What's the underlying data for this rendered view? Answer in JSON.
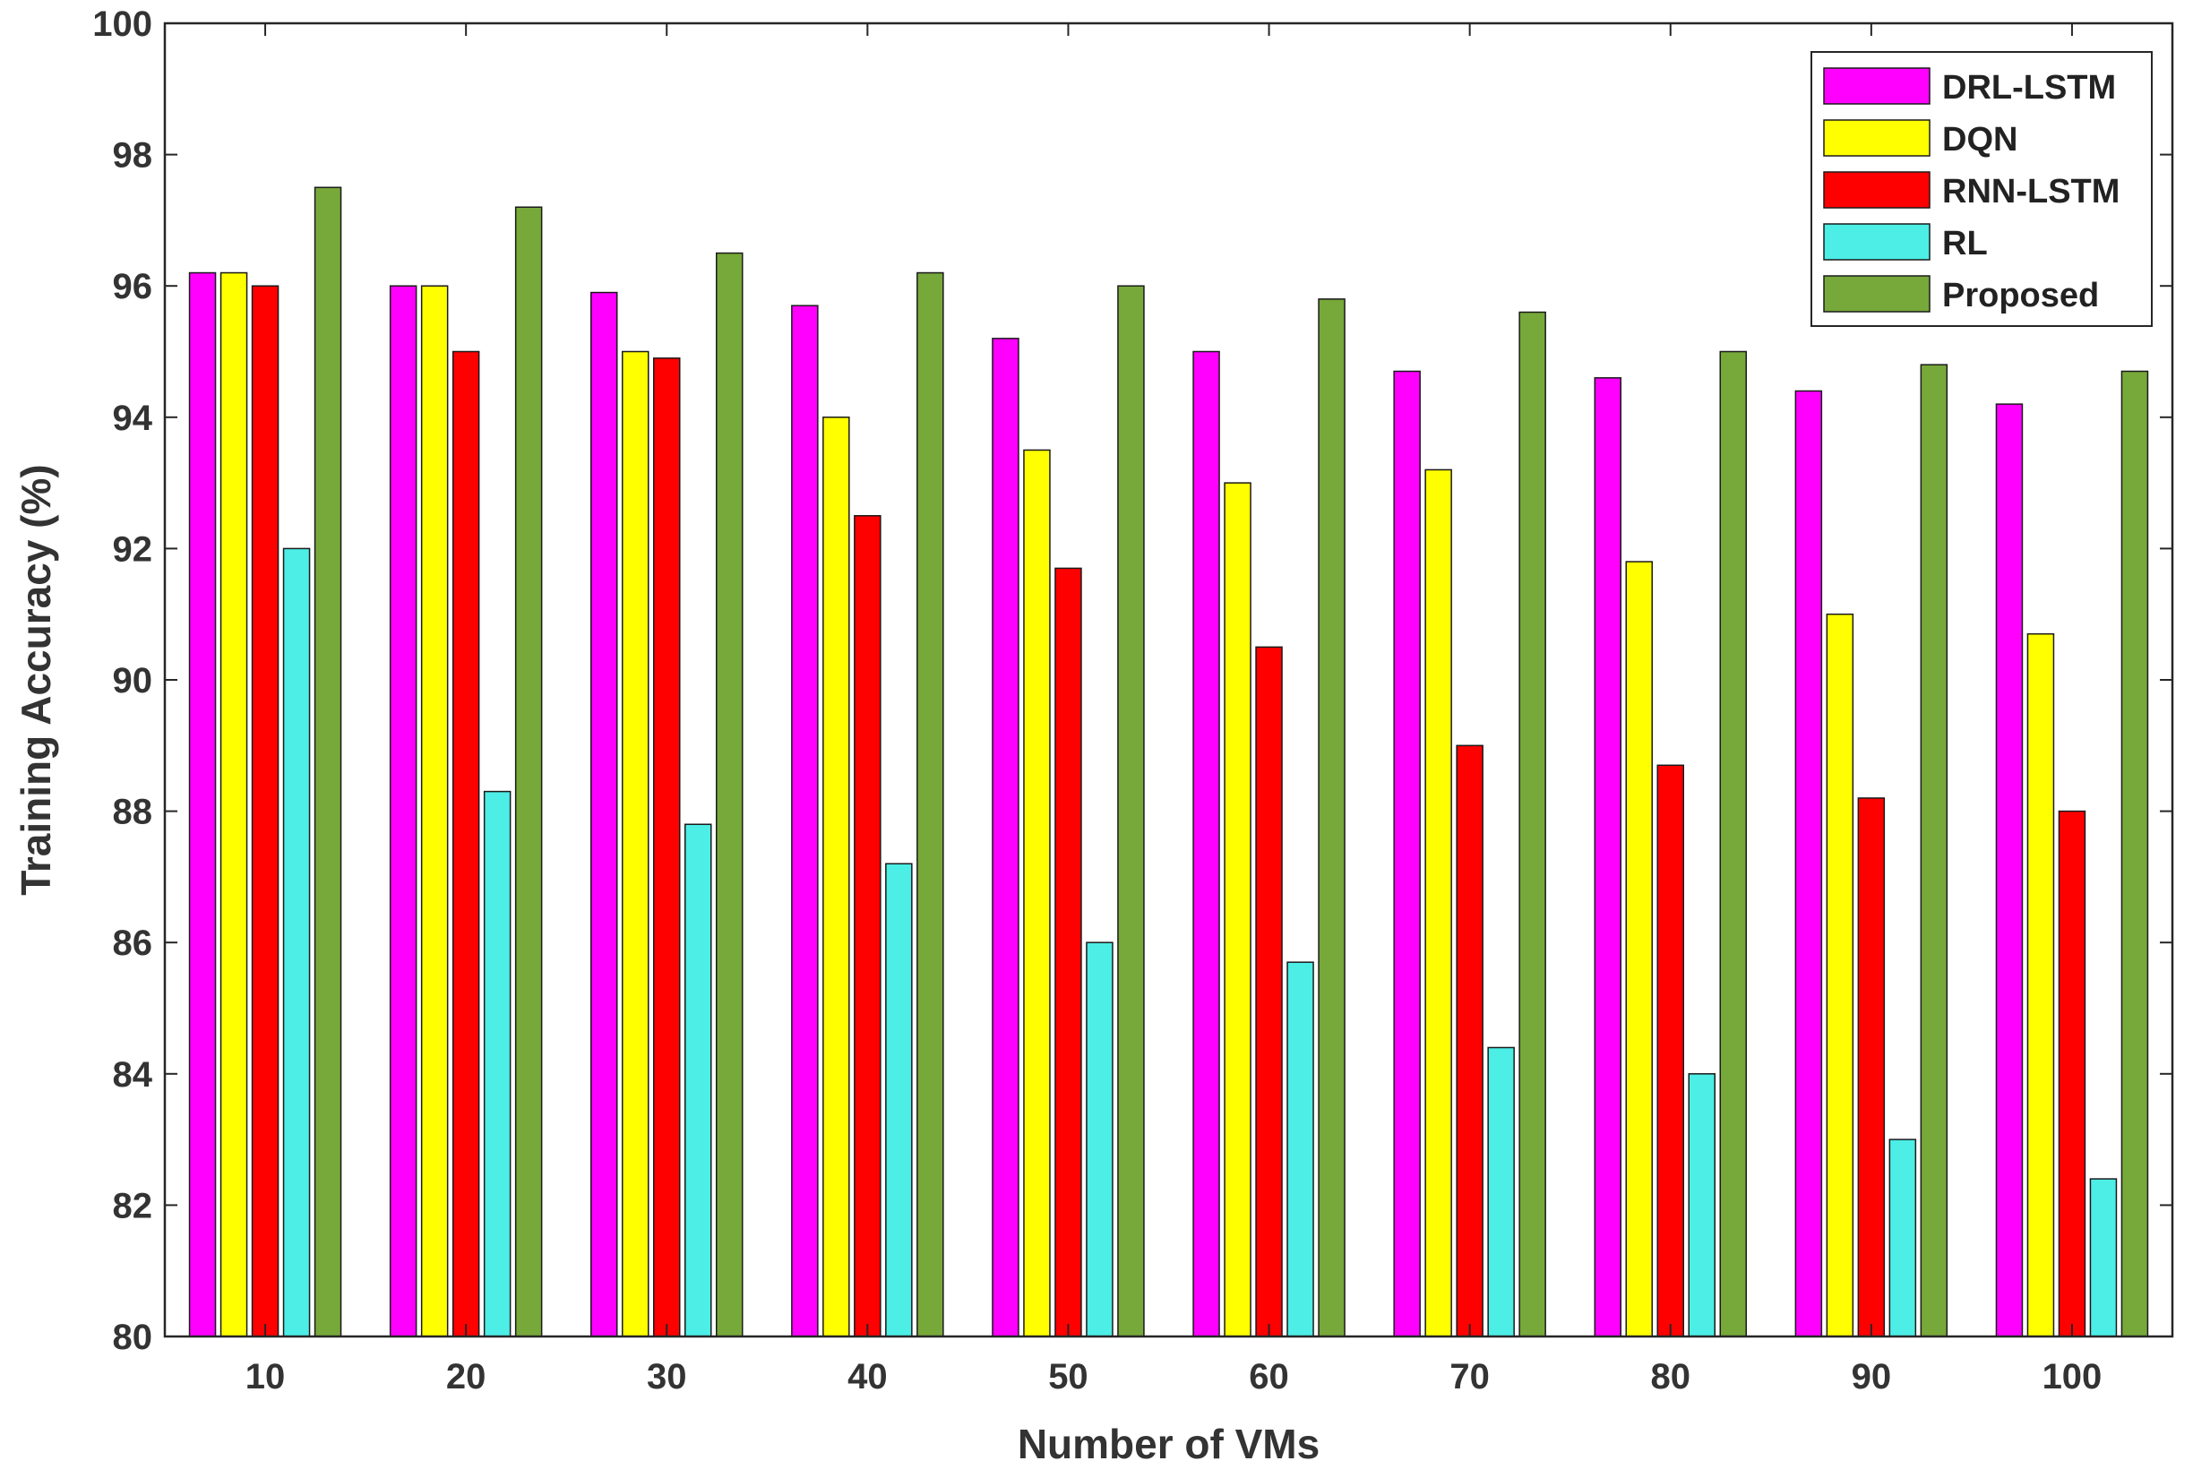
{
  "chart_data": {
    "type": "bar",
    "title": "",
    "xlabel": "Number of VMs",
    "ylabel": "Training Accuracy (%)",
    "ylim": [
      80,
      100
    ],
    "yticks": [
      80,
      82,
      84,
      86,
      88,
      90,
      92,
      94,
      96,
      98,
      100
    ],
    "categories": [
      "10",
      "20",
      "30",
      "40",
      "50",
      "60",
      "70",
      "80",
      "90",
      "100"
    ],
    "legend_position": "top-right",
    "grid": false,
    "series": [
      {
        "name": "DRL-LSTM",
        "color": "#ff00ff",
        "values": [
          96.2,
          96.0,
          95.9,
          95.7,
          95.2,
          95.0,
          94.7,
          94.6,
          94.4,
          94.2
        ]
      },
      {
        "name": "DQN",
        "color": "#ffff00",
        "values": [
          96.2,
          96.0,
          95.0,
          94.0,
          93.5,
          93.0,
          93.2,
          91.8,
          91.0,
          90.7
        ]
      },
      {
        "name": "RNN-LSTM",
        "color": "#ff0000",
        "values": [
          96.0,
          95.0,
          94.9,
          92.5,
          91.7,
          90.5,
          89.0,
          88.7,
          88.2,
          88.0
        ]
      },
      {
        "name": "RL",
        "color": "#4ceee6",
        "values": [
          92.0,
          88.3,
          87.8,
          87.2,
          86.0,
          85.7,
          84.4,
          84.0,
          83.0,
          82.4
        ]
      },
      {
        "name": "Proposed",
        "color": "#77a83a",
        "values": [
          97.5,
          97.2,
          96.5,
          96.2,
          96.0,
          95.8,
          95.6,
          95.0,
          94.8,
          94.7
        ]
      }
    ]
  }
}
